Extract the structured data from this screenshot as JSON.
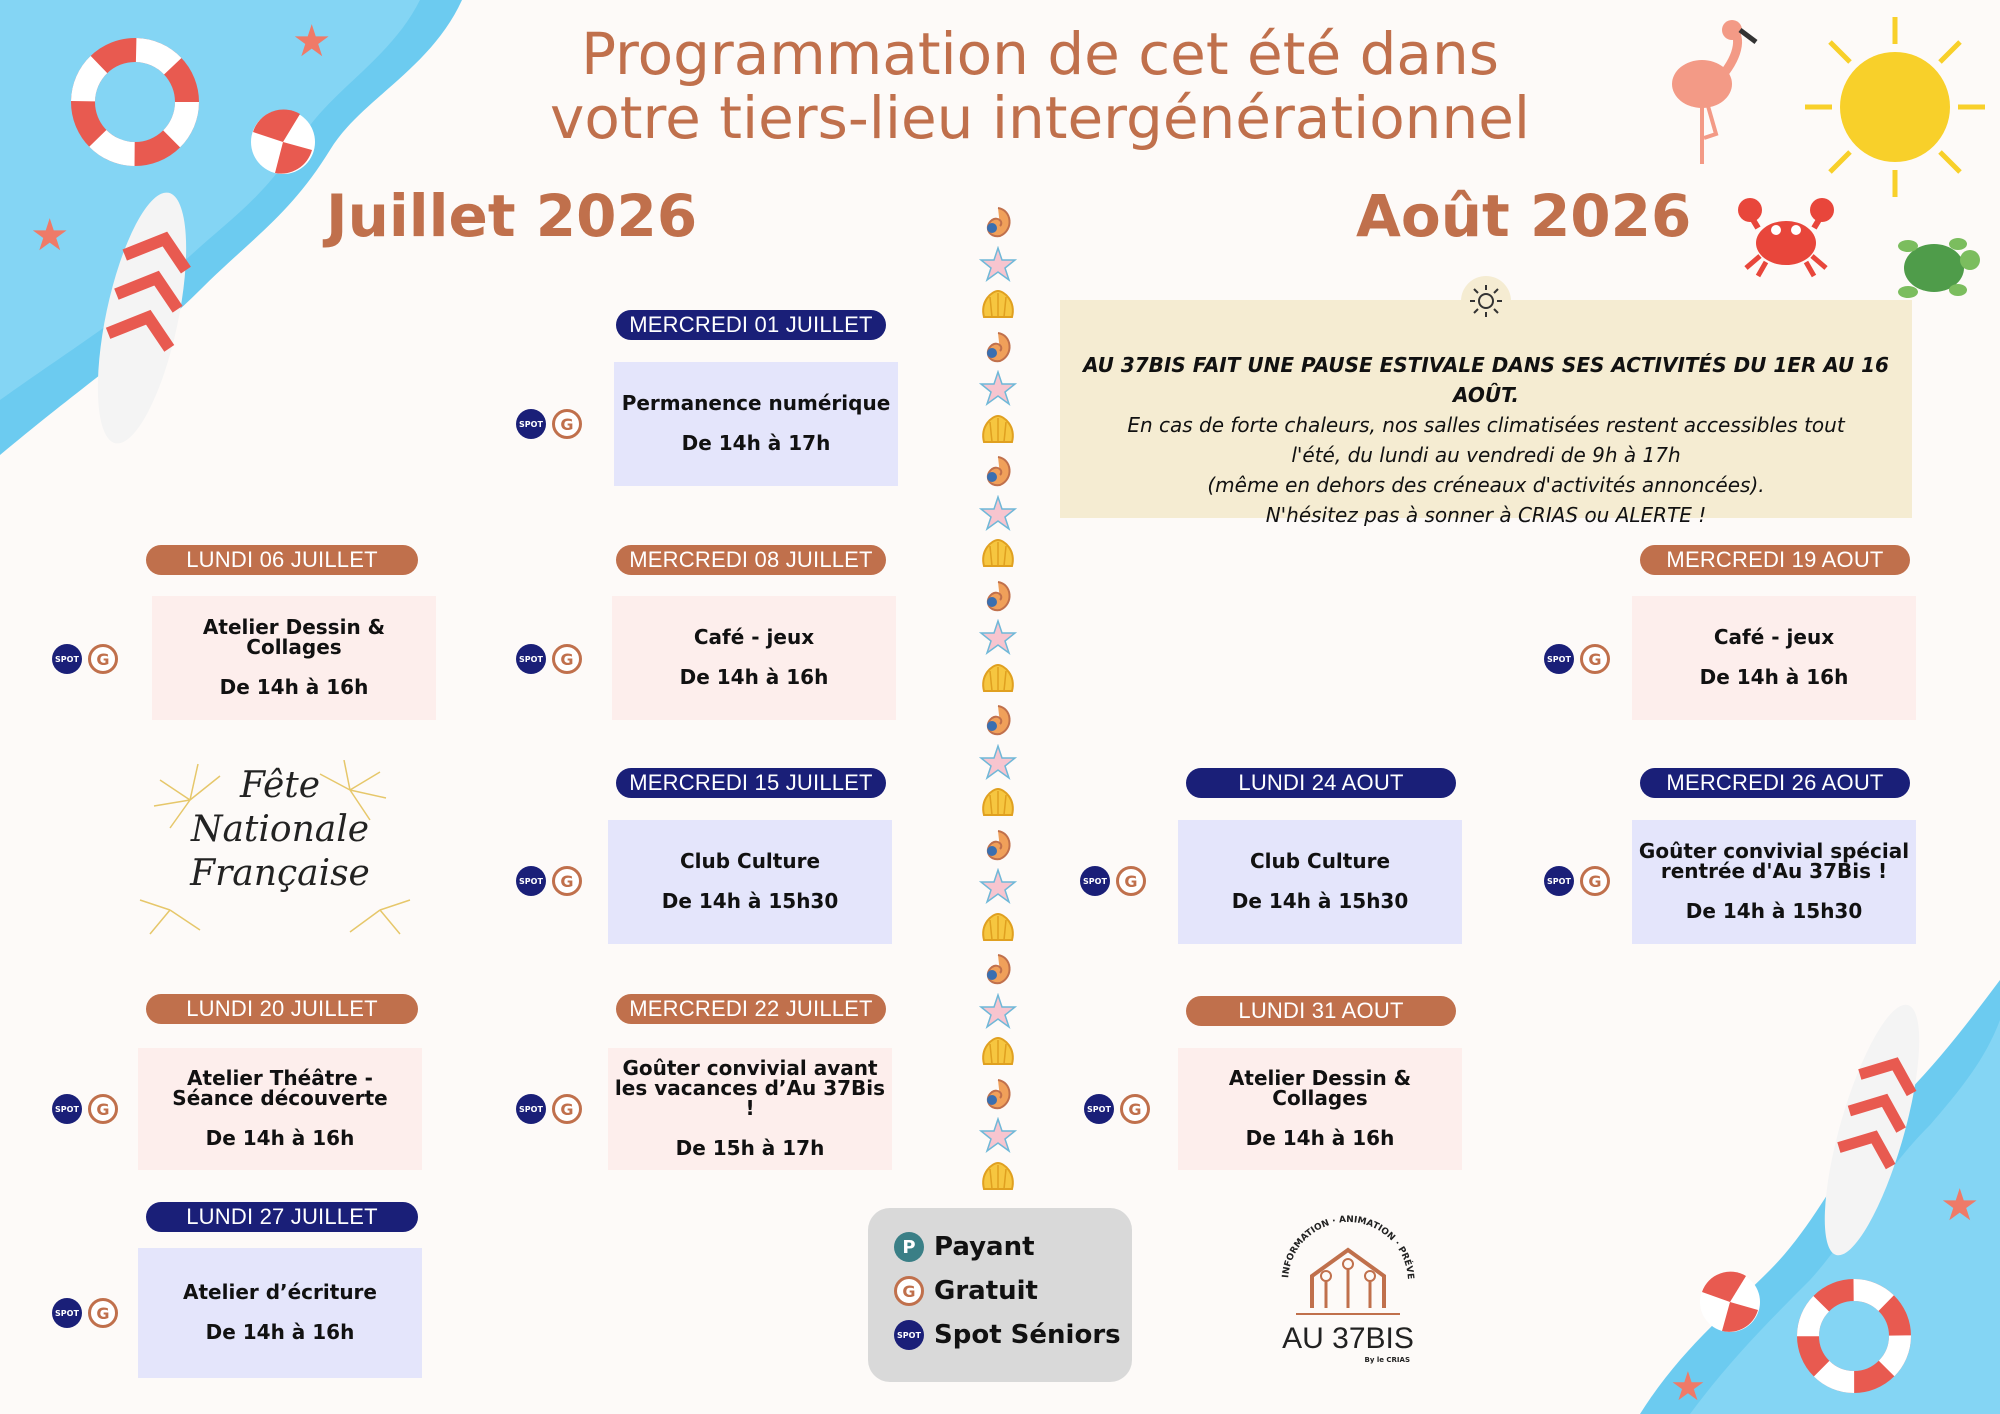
{
  "header": {
    "title_line1": "Programmation de cet été dans",
    "title_line2": "votre tiers-lieu intergénérationnel",
    "month_july": "Juillet 2026",
    "month_august": "Août 2026"
  },
  "july": {
    "e1": {
      "day": "MERCREDI 01 JUILLET",
      "title": "Permanence numérique",
      "hours": "De 14h à 17h"
    },
    "e2": {
      "day": "LUNDI 06 JUILLET",
      "title": "Atelier Dessin & Collages",
      "hours": "De 14h à 16h"
    },
    "e3": {
      "day": "MERCREDI 08 JUILLET",
      "title": "Café - jeux",
      "hours": "De 14h à 16h"
    },
    "e4": {
      "day": "MERCREDI 15 JUILLET",
      "title": "Club Culture",
      "hours": "De 14h à 15h30"
    },
    "e5": {
      "day": "LUNDI 20 JUILLET",
      "title": "Atelier Théâtre - Séance découverte",
      "hours": "De 14h à 16h"
    },
    "e6": {
      "day": "MERCREDI 22 JUILLET",
      "title": "Goûter convivial avant les vacances d’Au 37Bis !",
      "hours": "De 15h à 17h"
    },
    "e7": {
      "day": "LUNDI 27 JUILLET",
      "title": "Atelier d’écriture",
      "hours": "De 14h à 16h"
    }
  },
  "august": {
    "notice": {
      "bold_line": "AU 37BIS FAIT UNE PAUSE ESTIVALE DANS SES ACTIVITÉS DU 1ER AU 16 AOÛT.",
      "line2": "En cas de forte chaleurs, nos salles climatisées restent accessibles tout",
      "line3": "l'été, du lundi au vendredi de 9h à 17h",
      "line4": "(même en dehors des créneaux d'activités annoncées).",
      "line5": "N'hésitez pas à sonner à CRIAS ou ALERTE !"
    },
    "e1": {
      "day": "MERCREDI 19 AOUT",
      "title": "Café - jeux",
      "hours": "De 14h à 16h"
    },
    "e2": {
      "day": "LUNDI 24 AOUT",
      "title": "Club Culture",
      "hours": "De 14h à 15h30"
    },
    "e3": {
      "day": "MERCREDI 26 AOUT",
      "title": "Goûter convivial spécial rentrée d'Au 37Bis !",
      "hours": "De 14h à 15h30"
    },
    "e4": {
      "day": "LUNDI 31 AOUT",
      "title": "Atelier Dessin & Collages",
      "hours": "De 14h à 16h"
    }
  },
  "fete": {
    "line1": "Fête",
    "line2": "Nationale",
    "line3": "Française"
  },
  "legend": {
    "paid": "Payant",
    "paid_letter": "P",
    "free": "Gratuit",
    "free_letter": "G",
    "spot": "Spot Séniors",
    "spot_badge": "SPOT"
  },
  "logo": {
    "arc_text": "INFORMATION · ANIMATION · PRÉVENTION",
    "name": "AU 37BIS",
    "by": "By le CRIAS"
  },
  "colors": {
    "accent": "#c0704c",
    "navy": "#1a1f78",
    "lavender": "#e4e5fb",
    "pink": "#fdeeec",
    "notice": "#f5ecd2",
    "water": "#5cc3ec"
  }
}
